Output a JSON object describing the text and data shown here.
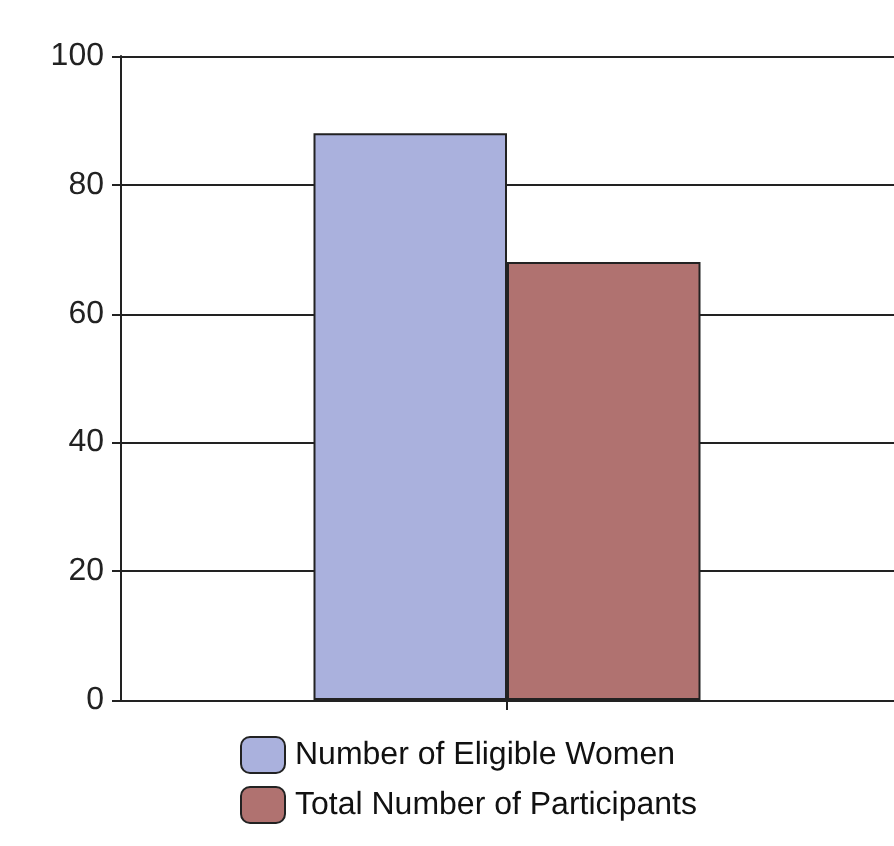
{
  "chart_data": {
    "type": "bar",
    "categories": [
      null
    ],
    "series": [
      {
        "name": "Number of Eligible Women",
        "color": "#aab1dd",
        "values": [
          88
        ]
      },
      {
        "name": "Total Number of Participants",
        "color": "#b07270",
        "values": [
          68
        ]
      }
    ],
    "ylim": [
      0,
      100
    ],
    "yticks": [
      0,
      20,
      40,
      60,
      80,
      100
    ],
    "grid": "y",
    "legend": "bottom"
  }
}
